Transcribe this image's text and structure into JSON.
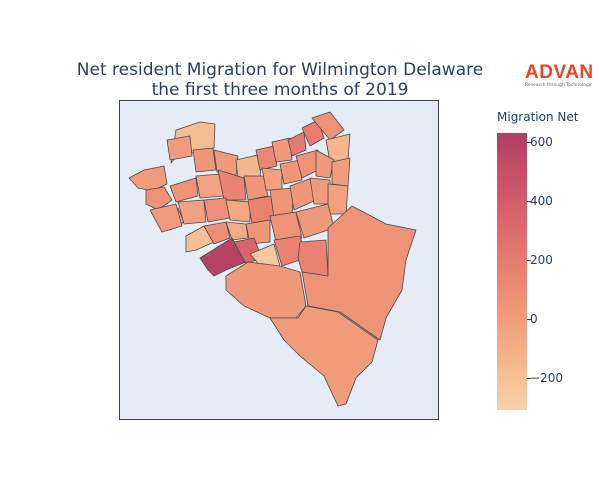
{
  "title": {
    "line1": "Net resident Migration for Wilmington Delaware",
    "line2": "the first three months of 2019"
  },
  "logo": {
    "word": "ADVAN",
    "tagline": "Research through Technology",
    "color": "#e8462a"
  },
  "colorbar": {
    "title": "Migration Net",
    "min": -310,
    "max": 630,
    "ticks": [
      {
        "value": 600,
        "label": "600"
      },
      {
        "value": 400,
        "label": "400"
      },
      {
        "value": 200,
        "label": "200"
      },
      {
        "value": 0,
        "label": "0"
      },
      {
        "value": -200,
        "label": "−200"
      }
    ],
    "colors": [
      "#f6d2a9",
      "#f5b78e",
      "#f19c7c",
      "#ea8171",
      "#dd686c",
      "#ca5268",
      "#b13f64"
    ]
  },
  "map": {
    "background": "#e5ecf6",
    "regions": [
      {
        "pts": [
          [
            171,
            163
          ],
          [
            176,
            130
          ],
          [
            200,
            122
          ],
          [
            215,
            124
          ],
          [
            214,
            148
          ],
          [
            196,
            152
          ],
          [
            176,
            157
          ]
        ],
        "value": -190
      },
      {
        "pts": [
          [
            129,
            178
          ],
          [
            144,
            170
          ],
          [
            164,
            166
          ],
          [
            167,
            184
          ],
          [
            152,
            191
          ],
          [
            138,
            188
          ]
        ],
        "value": 5
      },
      {
        "pts": [
          [
            146,
            190
          ],
          [
            164,
            187
          ],
          [
            172,
            200
          ],
          [
            158,
            210
          ],
          [
            146,
            204
          ]
        ],
        "value": 70
      },
      {
        "pts": [
          [
            160,
            213
          ],
          [
            178,
            208
          ],
          [
            184,
            222
          ],
          [
            170,
            230
          ],
          [
            158,
            225
          ]
        ],
        "value": -80
      },
      {
        "pts": [
          [
            167,
            140
          ],
          [
            190,
            136
          ],
          [
            192,
            156
          ],
          [
            170,
            160
          ]
        ],
        "value": 10
      },
      {
        "pts": [
          [
            193,
            150
          ],
          [
            213,
            148
          ],
          [
            216,
            170
          ],
          [
            196,
            172
          ]
        ],
        "value": 40
      },
      {
        "pts": [
          [
            214,
            150
          ],
          [
            238,
            156
          ],
          [
            236,
            176
          ],
          [
            217,
            172
          ]
        ],
        "value": 15
      },
      {
        "pts": [
          [
            236,
            160
          ],
          [
            262,
            154
          ],
          [
            260,
            178
          ],
          [
            238,
            180
          ]
        ],
        "value": -150
      },
      {
        "pts": [
          [
            256,
            150
          ],
          [
            274,
            146
          ],
          [
            277,
            166
          ],
          [
            260,
            170
          ]
        ],
        "value": 130
      },
      {
        "pts": [
          [
            272,
            142
          ],
          [
            290,
            138
          ],
          [
            292,
            160
          ],
          [
            276,
            162
          ]
        ],
        "value": 20
      },
      {
        "pts": [
          [
            288,
            140
          ],
          [
            304,
            132
          ],
          [
            306,
            150
          ],
          [
            292,
            156
          ]
        ],
        "value": 210
      },
      {
        "pts": [
          [
            302,
            128
          ],
          [
            318,
            120
          ],
          [
            324,
            138
          ],
          [
            310,
            146
          ]
        ],
        "value": 190
      },
      {
        "pts": [
          [
            312,
            118
          ],
          [
            330,
            112
          ],
          [
            344,
            130
          ],
          [
            330,
            140
          ]
        ],
        "value": 60
      },
      {
        "pts": [
          [
            326,
            140
          ],
          [
            350,
            134
          ],
          [
            348,
            160
          ],
          [
            330,
            162
          ]
        ],
        "value": -150
      },
      {
        "pts": [
          [
            170,
            186
          ],
          [
            196,
            178
          ],
          [
            198,
            196
          ],
          [
            176,
            202
          ]
        ],
        "value": 60
      },
      {
        "pts": [
          [
            196,
            176
          ],
          [
            220,
            174
          ],
          [
            224,
            196
          ],
          [
            200,
            198
          ]
        ],
        "value": -40
      },
      {
        "pts": [
          [
            218,
            170
          ],
          [
            244,
            178
          ],
          [
            246,
            200
          ],
          [
            224,
            200
          ]
        ],
        "value": 150
      },
      {
        "pts": [
          [
            244,
            176
          ],
          [
            264,
            176
          ],
          [
            268,
            196
          ],
          [
            248,
            200
          ]
        ],
        "value": 40
      },
      {
        "pts": [
          [
            262,
            168
          ],
          [
            282,
            170
          ],
          [
            282,
            190
          ],
          [
            266,
            190
          ]
        ],
        "value": -20
      },
      {
        "pts": [
          [
            280,
            164
          ],
          [
            300,
            160
          ],
          [
            302,
            180
          ],
          [
            284,
            184
          ]
        ],
        "value": 30
      },
      {
        "pts": [
          [
            296,
            156
          ],
          [
            318,
            150
          ],
          [
            318,
            170
          ],
          [
            302,
            178
          ]
        ],
        "value": 60
      },
      {
        "pts": [
          [
            316,
            150
          ],
          [
            334,
            160
          ],
          [
            330,
            178
          ],
          [
            316,
            176
          ]
        ],
        "value": 20
      },
      {
        "pts": [
          [
            332,
            162
          ],
          [
            350,
            158
          ],
          [
            348,
            186
          ],
          [
            332,
            184
          ]
        ],
        "value": 0
      },
      {
        "pts": [
          [
            150,
            210
          ],
          [
            176,
            204
          ],
          [
            182,
            226
          ],
          [
            162,
            232
          ]
        ],
        "value": 10
      },
      {
        "pts": [
          [
            178,
            202
          ],
          [
            204,
            200
          ],
          [
            206,
            222
          ],
          [
            184,
            224
          ]
        ],
        "value": -30
      },
      {
        "pts": [
          [
            204,
            200
          ],
          [
            226,
            198
          ],
          [
            230,
            218
          ],
          [
            208,
            222
          ]
        ],
        "value": 80
      },
      {
        "pts": [
          [
            226,
            200
          ],
          [
            250,
            202
          ],
          [
            250,
            222
          ],
          [
            230,
            220
          ]
        ],
        "value": -60
      },
      {
        "pts": [
          [
            248,
            200
          ],
          [
            272,
            196
          ],
          [
            274,
            220
          ],
          [
            252,
            224
          ]
        ],
        "value": 160
      },
      {
        "pts": [
          [
            270,
            190
          ],
          [
            294,
            188
          ],
          [
            292,
            214
          ],
          [
            274,
            218
          ]
        ],
        "value": 40
      },
      {
        "pts": [
          [
            290,
            186
          ],
          [
            312,
            178
          ],
          [
            316,
            200
          ],
          [
            294,
            210
          ]
        ],
        "value": 30
      },
      {
        "pts": [
          [
            310,
            178
          ],
          [
            330,
            180
          ],
          [
            330,
            204
          ],
          [
            314,
            204
          ]
        ],
        "value": 10
      },
      {
        "pts": [
          [
            328,
            184
          ],
          [
            348,
            186
          ],
          [
            346,
            214
          ],
          [
            328,
            214
          ]
        ],
        "value": -30
      },
      {
        "pts": [
          [
            186,
            236
          ],
          [
            204,
            226
          ],
          [
            214,
            242
          ],
          [
            196,
            250
          ],
          [
            186,
            252
          ]
        ],
        "value": -200
      },
      {
        "pts": [
          [
            204,
            226
          ],
          [
            226,
            222
          ],
          [
            230,
            238
          ],
          [
            214,
            244
          ]
        ],
        "value": 90
      },
      {
        "pts": [
          [
            226,
            222
          ],
          [
            246,
            224
          ],
          [
            248,
            238
          ],
          [
            232,
            240
          ]
        ],
        "value": -80
      },
      {
        "pts": [
          [
            246,
            224
          ],
          [
            270,
            220
          ],
          [
            270,
            242
          ],
          [
            250,
            244
          ]
        ],
        "value": 40
      },
      {
        "pts": [
          [
            270,
            216
          ],
          [
            296,
            212
          ],
          [
            302,
            238
          ],
          [
            276,
            242
          ]
        ],
        "value": 70
      },
      {
        "pts": [
          [
            296,
            212
          ],
          [
            328,
            204
          ],
          [
            334,
            228
          ],
          [
            304,
            238
          ]
        ],
        "value": 20
      },
      {
        "pts": [
          [
            200,
            258
          ],
          [
            232,
            238
          ],
          [
            246,
            262
          ],
          [
            226,
            270
          ],
          [
            214,
            276
          ],
          [
            208,
            270
          ]
        ],
        "value": 600
      },
      {
        "pts": [
          [
            234,
            242
          ],
          [
            254,
            238
          ],
          [
            262,
            258
          ],
          [
            246,
            264
          ]
        ],
        "value": 350
      },
      {
        "pts": [
          [
            250,
            254
          ],
          [
            274,
            244
          ],
          [
            280,
            266
          ],
          [
            262,
            268
          ]
        ],
        "value": -250
      },
      {
        "pts": [
          [
            274,
            240
          ],
          [
            300,
            236
          ],
          [
            306,
            258
          ],
          [
            282,
            266
          ]
        ],
        "value": 150
      },
      {
        "pts": [
          [
            300,
            242
          ],
          [
            326,
            240
          ],
          [
            328,
            276
          ],
          [
            302,
            272
          ],
          [
            298,
            258
          ]
        ],
        "value": 160
      },
      {
        "pts": [
          [
            226,
            276
          ],
          [
            248,
            262
          ],
          [
            280,
            266
          ],
          [
            300,
            272
          ],
          [
            306,
            306
          ],
          [
            296,
            318
          ],
          [
            270,
            318
          ],
          [
            244,
            306
          ],
          [
            226,
            290
          ]
        ],
        "value": 20
      },
      {
        "pts": [
          [
            270,
            318
          ],
          [
            298,
            318
          ],
          [
            306,
            306
          ],
          [
            338,
            312
          ],
          [
            378,
            340
          ],
          [
            372,
            362
          ],
          [
            356,
            378
          ],
          [
            346,
            404
          ],
          [
            338,
            406
          ],
          [
            324,
            376
          ],
          [
            300,
            356
          ],
          [
            284,
            340
          ]
        ],
        "value": 0
      },
      {
        "pts": [
          [
            328,
            228
          ],
          [
            352,
            206
          ],
          [
            386,
            224
          ],
          [
            416,
            230
          ],
          [
            406,
            260
          ],
          [
            402,
            290
          ],
          [
            386,
            318
          ],
          [
            380,
            340
          ],
          [
            340,
            312
          ],
          [
            308,
            306
          ],
          [
            302,
            272
          ],
          [
            328,
            276
          ]
        ],
        "value": 60
      }
    ]
  }
}
